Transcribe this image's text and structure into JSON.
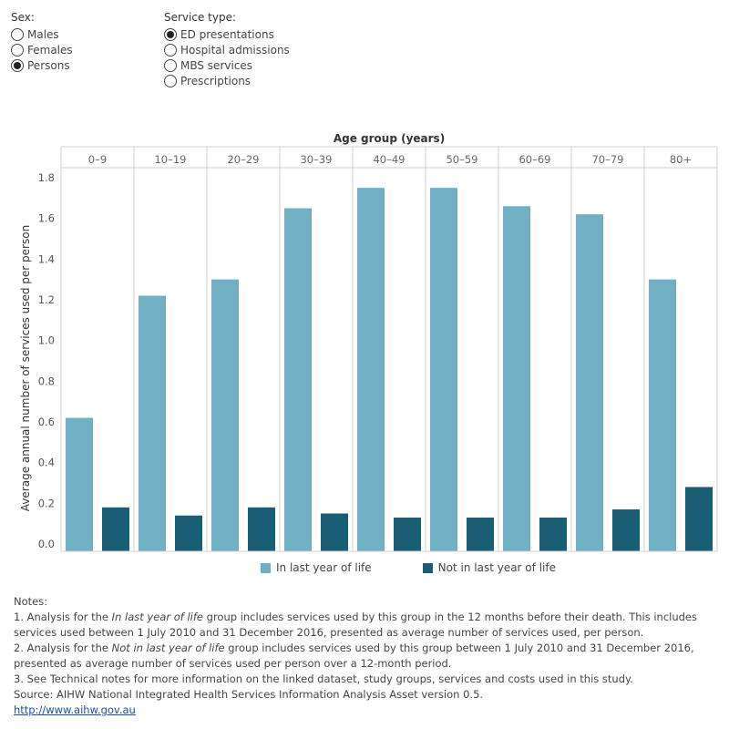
{
  "filters": {
    "sex": {
      "title": "Sex:",
      "options": [
        {
          "label": "Males",
          "selected": false
        },
        {
          "label": "Females",
          "selected": false
        },
        {
          "label": "Persons",
          "selected": true
        }
      ]
    },
    "service_type": {
      "title": "Service type:",
      "options": [
        {
          "label": "ED presentations",
          "selected": true
        },
        {
          "label": "Hospital admissions",
          "selected": false
        },
        {
          "label": "MBS services",
          "selected": false
        },
        {
          "label": "Prescriptions",
          "selected": false
        }
      ]
    }
  },
  "chart_data": {
    "type": "bar",
    "title": "",
    "xlabel": "Age group (years)",
    "ylabel": "Average annual number of services used per person",
    "categories": [
      "0–9",
      "10–19",
      "20–29",
      "30–39",
      "40–49",
      "50–59",
      "60–69",
      "70–79",
      "80+"
    ],
    "series": [
      {
        "name": "In last year of life",
        "color": "#6fb1c3",
        "values": [
          0.62,
          1.22,
          1.3,
          1.65,
          1.75,
          1.75,
          1.66,
          1.62,
          1.3
        ]
      },
      {
        "name": "Not in last year of life",
        "color": "#1b5d72",
        "values": [
          0.18,
          0.14,
          0.18,
          0.15,
          0.13,
          0.13,
          0.13,
          0.17,
          0.28
        ]
      }
    ],
    "ylim": [
      0,
      1.8
    ],
    "yticks": [
      "0.0",
      "0.2",
      "0.4",
      "0.6",
      "0.8",
      "1.0",
      "1.2",
      "1.4",
      "1.6",
      "1.8"
    ],
    "grid": false,
    "legend_position": "bottom"
  },
  "legend": {
    "item1": "In last year of life",
    "item2": "Not in last year of life"
  },
  "notes": {
    "heading": "Notes:",
    "n1_a": "1.  Analysis for the ",
    "n1_em": "In last year of life",
    "n1_b": " group includes services used by this group in the 12 months before their death. This includes services used between 1 July 2010 and 31 December 2016, presented as average number of services used, per person.",
    "n2_a": "2.  Analysis for the ",
    "n2_em": "Not in last year of life",
    "n2_b": " group includes services used by this group between 1 July 2010 and 31 December 2016, presented as average number of services used per person over a 12-month period.",
    "n3": "3.  See Technical notes for more information on the linked dataset, study groups, services and costs used in this study.",
    "source": "Source: AIHW National Integrated Health Services Information Analysis Asset version 0.5.",
    "link": "http://www.aihw.gov.au"
  }
}
